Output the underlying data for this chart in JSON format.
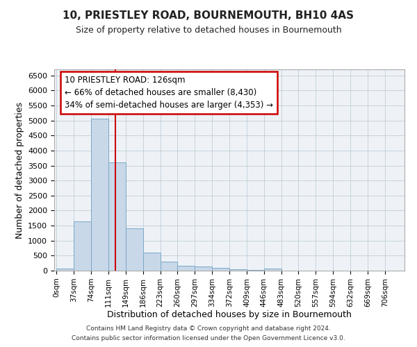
{
  "title": "10, PRIESTLEY ROAD, BOURNEMOUTH, BH10 4AS",
  "subtitle": "Size of property relative to detached houses in Bournemouth",
  "xlabel": "Distribution of detached houses by size in Bournemouth",
  "ylabel": "Number of detached properties",
  "bar_color": "#c8d8e8",
  "bar_edge_color": "#7aa8c8",
  "background_color": "#eef2f7",
  "grid_color": "#c0ccd8",
  "vline_x": 126,
  "vline_color": "#cc0000",
  "annotation_text": "10 PRIESTLEY ROAD: 126sqm\n← 66% of detached houses are smaller (8,430)\n34% of semi-detached houses are larger (4,353) →",
  "annotation_box_color": "#ffffff",
  "annotation_box_edge": "#cc0000",
  "bin_edges": [
    0,
    37,
    74,
    111,
    149,
    186,
    223,
    260,
    297,
    334,
    372,
    409,
    446,
    483,
    520,
    557,
    594,
    632,
    669,
    706,
    743
  ],
  "bar_heights": [
    75,
    1650,
    5050,
    3600,
    1400,
    600,
    300,
    155,
    130,
    100,
    55,
    30,
    60,
    0,
    0,
    0,
    0,
    0,
    0,
    0
  ],
  "ylim": [
    0,
    6700
  ],
  "yticks": [
    0,
    500,
    1000,
    1500,
    2000,
    2500,
    3000,
    3500,
    4000,
    4500,
    5000,
    5500,
    6000,
    6500
  ],
  "footer1": "Contains HM Land Registry data © Crown copyright and database right 2024.",
  "footer2": "Contains public sector information licensed under the Open Government Licence v3.0."
}
